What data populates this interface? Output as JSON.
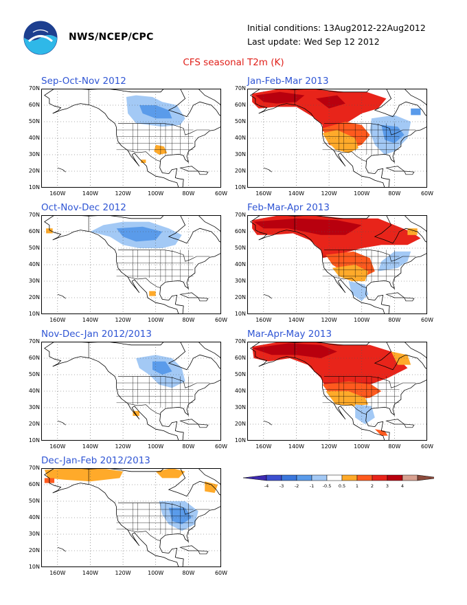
{
  "header": {
    "agency": "NWS/NCEP/CPC",
    "initial_conditions": "Initial conditions: 13Aug2012-22Aug2012",
    "last_update": "Last update: Wed Sep 12 2012",
    "title": "CFS seasonal T2m (K)"
  },
  "axes": {
    "lat_labels": [
      "70N",
      "60N",
      "50N",
      "40N",
      "30N",
      "20N",
      "10N"
    ],
    "lon_labels": [
      "160W",
      "140W",
      "120W",
      "100W",
      "80W",
      "60W"
    ]
  },
  "panels": [
    {
      "title": "Sep-Oct-Nov 2012",
      "anomaly": "cool north (Canada), warm patches Texas and northern Mexico"
    },
    {
      "title": "Jan-Feb-Mar 2013",
      "anomaly": "strong warm Alaska and western Canada, warm central US, cool east and Great Lakes"
    },
    {
      "title": "Oct-Nov-Dec 2012",
      "anomaly": "cool western and central Canada, small warm patch Mexico"
    },
    {
      "title": "Feb-Mar-Apr 2013",
      "anomaly": "strong warm Alaska and Canada, warm southern plains, cool Mexico and southeast"
    },
    {
      "title": "Nov-Dec-Jan 2012/2013",
      "anomaly": "cool central Canada and Great Lakes, small warm Baja"
    },
    {
      "title": "Mar-Apr-May 2013",
      "anomaly": "strong warm Alaska and Canada, warm western and central US, cool Texas and Mexico"
    },
    {
      "title": "Dec-Jan-Feb 2012/2013",
      "anomaly": "warm northern Alaska and Canada rim, cool eastern US"
    }
  ],
  "colorbar": {
    "labels": [
      "-4",
      "-3",
      "-2",
      "-1",
      "-0.5",
      "0.5",
      "1",
      "2",
      "3",
      "4"
    ],
    "colors": [
      "#3d2ab0",
      "#3c4fcf",
      "#3b77dc",
      "#5a9bea",
      "#a3c9f5",
      "#ffffff",
      "#ffaa2a",
      "#ff5a1e",
      "#e8241a",
      "#b8000e",
      "#d8a090",
      "#8b4a3c"
    ]
  }
}
